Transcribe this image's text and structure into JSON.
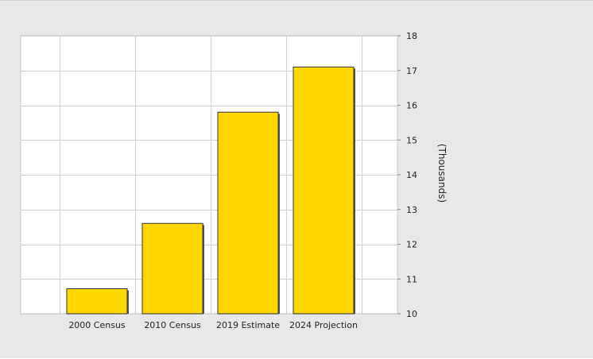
{
  "chart_data": {
    "type": "bar",
    "categories": [
      "2000 Census",
      "2010 Census",
      "2019 Estimate",
      "2024 Projection"
    ],
    "values": [
      10.72,
      12.6,
      15.8,
      17.1
    ],
    "title": "",
    "xlabel": "",
    "ylabel": "(Thousands)",
    "ylim": [
      10,
      18
    ],
    "yticks": [
      10,
      11,
      12,
      13,
      14,
      15,
      16,
      17,
      18
    ],
    "grid": true,
    "y_axis_side": "right",
    "bar_color": "#ffd700",
    "bar_outline_color": "#333333",
    "plot_background": "#ffffff",
    "panel_background": "#e8e8e8",
    "grid_color": "#d0d0d0"
  }
}
